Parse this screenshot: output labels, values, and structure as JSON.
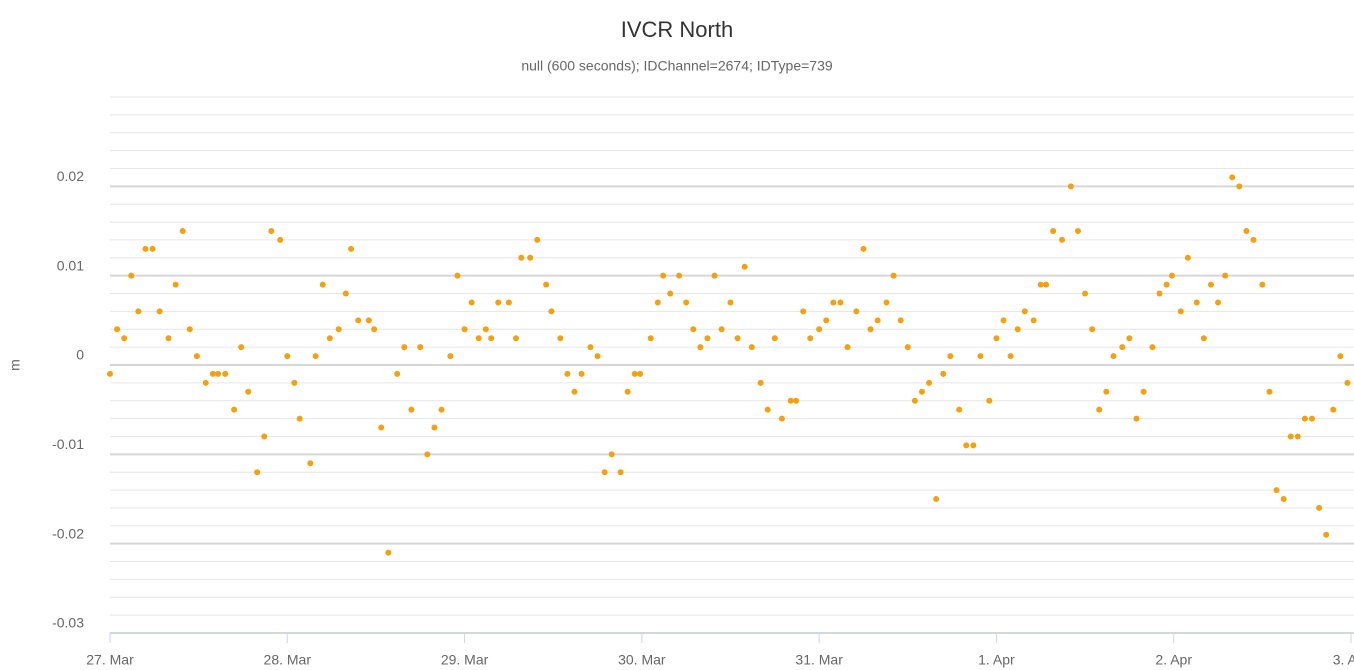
{
  "chart_data": {
    "type": "scatter",
    "title": "IVCR North",
    "subtitle": "null (600 seconds); IDChannel=2674; IDType=739",
    "y_label": "m",
    "color": "#f5a00f",
    "x": [
      0,
      0.04,
      0.08,
      0.12,
      0.16,
      0.2,
      0.24,
      0.28,
      0.33,
      0.37,
      0.41,
      0.45,
      0.49,
      0.54,
      0.58,
      0.61,
      0.65,
      0.7,
      0.74,
      0.78,
      0.83,
      0.87,
      0.91,
      0.96,
      1,
      1.04,
      1.07,
      1.13,
      1.16,
      1.2,
      1.24,
      1.29,
      1.33,
      1.36,
      1.4,
      1.46,
      1.49,
      1.53,
      1.57,
      1.62,
      1.66,
      1.7,
      1.75,
      1.79,
      1.83,
      1.87,
      1.92,
      1.96,
      2,
      2.04,
      2.08,
      2.12,
      2.15,
      2.19,
      2.25,
      2.29,
      2.32,
      2.37,
      2.41,
      2.46,
      2.49,
      2.54,
      2.58,
      2.62,
      2.66,
      2.71,
      2.75,
      2.79,
      2.83,
      2.88,
      2.92,
      2.96,
      2.99,
      3.05,
      3.09,
      3.12,
      3.16,
      3.21,
      3.25,
      3.29,
      3.33,
      3.37,
      3.41,
      3.45,
      3.5,
      3.54,
      3.58,
      3.62,
      3.67,
      3.71,
      3.75,
      3.79,
      3.84,
      3.87,
      3.91,
      3.95,
      4,
      4.04,
      4.08,
      4.12,
      4.16,
      4.21,
      4.25,
      4.29,
      4.33,
      4.38,
      4.42,
      4.46,
      4.5,
      4.54,
      4.58,
      4.62,
      4.66,
      4.7,
      4.74,
      4.79,
      4.83,
      4.87,
      4.91,
      4.96,
      5,
      5.04,
      5.08,
      5.12,
      5.16,
      5.21,
      5.25,
      5.28,
      5.32,
      5.37,
      5.42,
      5.46,
      5.5,
      5.54,
      5.58,
      5.62,
      5.66,
      5.71,
      5.75,
      5.79,
      5.83,
      5.88,
      5.92,
      5.96,
      5.99,
      6.04,
      6.08,
      6.13,
      6.17,
      6.21,
      6.25,
      6.29,
      6.33,
      6.37,
      6.41,
      6.45,
      6.5,
      6.54,
      6.58,
      6.62,
      6.66,
      6.7,
      6.74,
      6.78,
      6.82,
      6.86,
      6.9,
      6.94,
      6.98
    ],
    "values": [
      -0.001,
      0.004,
      0.003,
      0.01,
      0.006,
      0.013,
      0.013,
      0.006,
      0.003,
      0.009,
      0.015,
      0.004,
      0.001,
      -0.002,
      -0.001,
      -0.001,
      -0.001,
      -0.005,
      0.002,
      -0.003,
      -0.012,
      -0.008,
      0.015,
      0.014,
      0.001,
      -0.002,
      -0.006,
      -0.011,
      0.001,
      0.009,
      0.003,
      0.004,
      0.008,
      0.013,
      0.005,
      0.005,
      0.004,
      -0.007,
      -0.021,
      -0.001,
      0.002,
      -0.005,
      0.002,
      -0.01,
      -0.007,
      -0.005,
      0.001,
      0.01,
      0.004,
      0.007,
      0.003,
      0.004,
      0.003,
      0.007,
      0.007,
      0.003,
      0.012,
      0.012,
      0.014,
      0.009,
      0.006,
      0.003,
      -0.001,
      -0.003,
      -0.001,
      0.002,
      0.001,
      -0.012,
      -0.01,
      -0.012,
      -0.003,
      -0.001,
      -0.001,
      0.003,
      0.007,
      0.01,
      0.008,
      0.01,
      0.007,
      0.004,
      0.002,
      0.003,
      0.01,
      0.004,
      0.007,
      0.003,
      0.011,
      0.002,
      -0.002,
      -0.005,
      0.003,
      -0.006,
      -0.004,
      -0.004,
      0.006,
      0.003,
      0.004,
      0.005,
      0.007,
      0.007,
      0.002,
      0.006,
      0.013,
      0.004,
      0.005,
      0.007,
      0.01,
      0.005,
      0.002,
      -0.004,
      -0.003,
      -0.002,
      -0.015,
      -0.001,
      0.001,
      -0.005,
      -0.009,
      -0.009,
      0.001,
      -0.004,
      0.003,
      0.005,
      0.001,
      0.004,
      0.006,
      0.005,
      0.009,
      0.009,
      0.015,
      0.014,
      0.02,
      0.015,
      0.008,
      0.004,
      -0.005,
      -0.003,
      0.001,
      0.002,
      0.003,
      -0.006,
      -0.003,
      0.002,
      0.008,
      0.009,
      0.01,
      0.006,
      0.012,
      0.007,
      0.003,
      0.009,
      0.007,
      0.01,
      0.021,
      0.02,
      0.015,
      0.014,
      0.009,
      -0.003,
      -0.014,
      -0.015,
      -0.008,
      -0.008,
      -0.006,
      -0.006,
      -0.016,
      -0.019,
      -0.005,
      0.001,
      -0.002
    ],
    "xlim": [
      0,
      7
    ],
    "xticks": [
      {
        "value": 0,
        "label": "27. Mar"
      },
      {
        "value": 1,
        "label": "28. Mar"
      },
      {
        "value": 2,
        "label": "29. Mar"
      },
      {
        "value": 3,
        "label": "30. Mar"
      },
      {
        "value": 4,
        "label": "31. Mar"
      },
      {
        "value": 5,
        "label": "1. Apr"
      },
      {
        "value": 6,
        "label": "2. Apr"
      },
      {
        "value": 7,
        "label": "3. Apr"
      }
    ],
    "ylim": [
      -0.03,
      0.03
    ],
    "yticks": [
      -0.03,
      -0.02,
      -0.01,
      0,
      0.01,
      0.02
    ],
    "grid": true
  }
}
